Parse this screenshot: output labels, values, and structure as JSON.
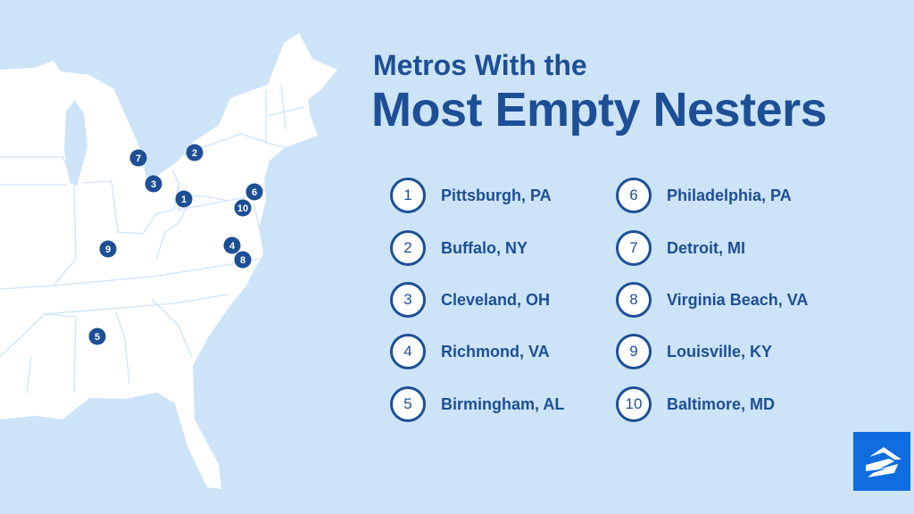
{
  "title": {
    "line1": "Metros With the",
    "line2": "Most Empty Nesters"
  },
  "colors": {
    "background": "#cde3f8",
    "land": "#ffffff",
    "accent": "#1d4f96",
    "logo": "#0f6de0"
  },
  "metros": [
    {
      "rank": "1",
      "name": "Pittsburgh, PA"
    },
    {
      "rank": "2",
      "name": "Buffalo, NY"
    },
    {
      "rank": "3",
      "name": "Cleveland, OH"
    },
    {
      "rank": "4",
      "name": "Richmond, VA"
    },
    {
      "rank": "5",
      "name": "Birmingham, AL"
    },
    {
      "rank": "6",
      "name": "Philadelphia, PA"
    },
    {
      "rank": "7",
      "name": "Detroit, MI"
    },
    {
      "rank": "8",
      "name": "Virginia Beach, VA"
    },
    {
      "rank": "9",
      "name": "Louisville, KY"
    },
    {
      "rank": "10",
      "name": "Baltimore, MD"
    }
  ],
  "logo": {
    "icon": "zillow-house-logo"
  }
}
